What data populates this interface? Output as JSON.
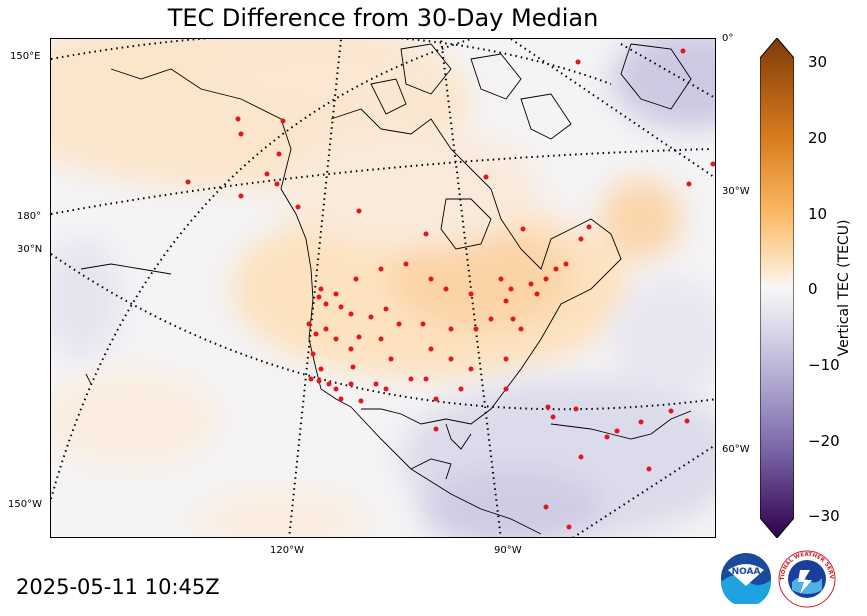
{
  "title": "TEC Difference from 30-Day Median",
  "timestamp": "2025-05-11 10:45Z",
  "colorbar": {
    "label": "Vertical TEC (TECU)",
    "ticks": [
      "30",
      "20",
      "10",
      "0",
      "−10",
      "−20",
      "−30"
    ],
    "min": -30,
    "max": 30,
    "colors": {
      "high": "#7f3b08",
      "mid_high": "#f1a340",
      "neutral": "#f7f7f7",
      "mid_low": "#998ec3",
      "low": "#2d004b"
    }
  },
  "graticule_labels": {
    "left": [
      "150°E",
      "180°",
      "30°N",
      "150°W"
    ],
    "right": [
      "0°",
      "30°W",
      "60°W"
    ],
    "bottom": [
      "120°W",
      "90°W"
    ]
  },
  "station_marker_color": "#e8141b",
  "logos": {
    "noaa": "NOAA",
    "nws": "NATIONAL WEATHER SERVICE"
  }
}
